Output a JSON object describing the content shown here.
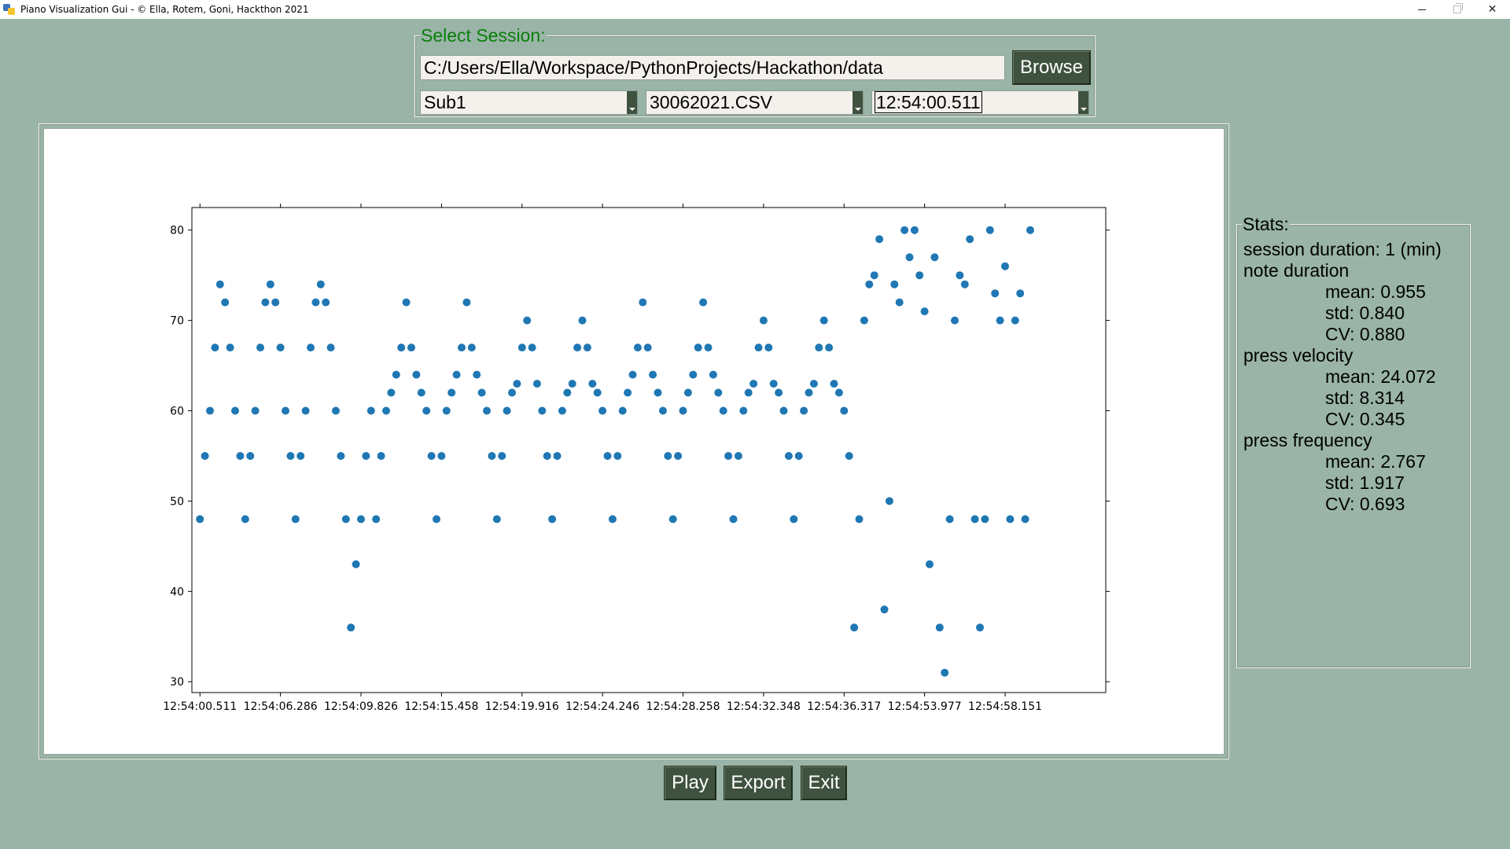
{
  "window": {
    "title": "Piano Visualization Gui - © Ella, Rotem, Goni, Hackthon 2021",
    "minimize_glyph": "–",
    "close_glyph": "✕",
    "icon": "python-icon"
  },
  "session": {
    "legend": "Select Session:",
    "path": "C:/Users/Ella/Workspace/PythonProjects/Hackathon/data",
    "browse_label": "Browse",
    "subject": "Sub1",
    "file": "30062021.CSV",
    "time": "12:54:00.511"
  },
  "stats": {
    "legend": "Stats:",
    "session_duration": "session duration: 1 (min)",
    "note_duration": {
      "label": "note duration",
      "mean": "mean: 0.955",
      "std": "std: 0.840",
      "cv": "CV: 0.880"
    },
    "press_velocity": {
      "label": "press velocity",
      "mean": "mean: 24.072",
      "std": "std: 8.314",
      "cv": "CV: 0.345"
    },
    "press_frequency": {
      "label": "press frequency",
      "mean": "mean: 2.767",
      "std": "std: 1.917",
      "cv": "CV: 0.693"
    }
  },
  "buttons": {
    "play": "Play",
    "export": "Export",
    "exit": "Exit"
  },
  "chart_data": {
    "type": "scatter",
    "title": "",
    "xlabel": "",
    "ylabel": "",
    "ylim": [
      28.8,
      82.5
    ],
    "xlim": [
      -8,
      900
    ],
    "grid": false,
    "color": "#1f77b4",
    "y_ticks": [
      30,
      40,
      50,
      60,
      70,
      80
    ],
    "x_ticks": [
      {
        "x": 0,
        "label": "12:54:00.511"
      },
      {
        "x": 80,
        "label": "12:54:06.286"
      },
      {
        "x": 160,
        "label": "12:54:09.826"
      },
      {
        "x": 240,
        "label": "12:54:15.458"
      },
      {
        "x": 320,
        "label": "12:54:19.916"
      },
      {
        "x": 400,
        "label": "12:54:24.246"
      },
      {
        "x": 480,
        "label": "12:54:28.258"
      },
      {
        "x": 560,
        "label": "12:54:32.348"
      },
      {
        "x": 640,
        "label": "12:54:36.317"
      },
      {
        "x": 720,
        "label": "12:54:53.977"
      },
      {
        "x": 800,
        "label": "12:54:58.151"
      }
    ],
    "points": [
      [
        0,
        48
      ],
      [
        5,
        55
      ],
      [
        10,
        60
      ],
      [
        15,
        67
      ],
      [
        20,
        74
      ],
      [
        25,
        72
      ],
      [
        30,
        67
      ],
      [
        35,
        60
      ],
      [
        40,
        55
      ],
      [
        45,
        48
      ],
      [
        50,
        55
      ],
      [
        55,
        60
      ],
      [
        60,
        67
      ],
      [
        65,
        72
      ],
      [
        70,
        74
      ],
      [
        75,
        72
      ],
      [
        80,
        67
      ],
      [
        85,
        60
      ],
      [
        90,
        55
      ],
      [
        95,
        48
      ],
      [
        100,
        55
      ],
      [
        105,
        60
      ],
      [
        110,
        67
      ],
      [
        115,
        72
      ],
      [
        120,
        74
      ],
      [
        125,
        72
      ],
      [
        130,
        67
      ],
      [
        135,
        60
      ],
      [
        140,
        55
      ],
      [
        145,
        48
      ],
      [
        150,
        36
      ],
      [
        155,
        43
      ],
      [
        160,
        48
      ],
      [
        165,
        55
      ],
      [
        170,
        60
      ],
      [
        175,
        48
      ],
      [
        180,
        55
      ],
      [
        185,
        60
      ],
      [
        190,
        62
      ],
      [
        195,
        64
      ],
      [
        200,
        67
      ],
      [
        205,
        72
      ],
      [
        210,
        67
      ],
      [
        215,
        64
      ],
      [
        220,
        62
      ],
      [
        225,
        60
      ],
      [
        230,
        55
      ],
      [
        235,
        48
      ],
      [
        240,
        55
      ],
      [
        245,
        60
      ],
      [
        250,
        62
      ],
      [
        255,
        64
      ],
      [
        260,
        67
      ],
      [
        265,
        72
      ],
      [
        270,
        67
      ],
      [
        275,
        64
      ],
      [
        280,
        62
      ],
      [
        285,
        60
      ],
      [
        290,
        55
      ],
      [
        295,
        48
      ],
      [
        300,
        55
      ],
      [
        305,
        60
      ],
      [
        310,
        62
      ],
      [
        315,
        63
      ],
      [
        320,
        67
      ],
      [
        325,
        70
      ],
      [
        330,
        67
      ],
      [
        335,
        63
      ],
      [
        340,
        60
      ],
      [
        345,
        55
      ],
      [
        350,
        48
      ],
      [
        355,
        55
      ],
      [
        360,
        60
      ],
      [
        365,
        62
      ],
      [
        370,
        63
      ],
      [
        375,
        67
      ],
      [
        380,
        70
      ],
      [
        385,
        67
      ],
      [
        390,
        63
      ],
      [
        395,
        62
      ],
      [
        400,
        60
      ],
      [
        405,
        55
      ],
      [
        410,
        48
      ],
      [
        415,
        55
      ],
      [
        420,
        60
      ],
      [
        425,
        62
      ],
      [
        430,
        64
      ],
      [
        435,
        67
      ],
      [
        440,
        72
      ],
      [
        445,
        67
      ],
      [
        450,
        64
      ],
      [
        455,
        62
      ],
      [
        460,
        60
      ],
      [
        465,
        55
      ],
      [
        470,
        48
      ],
      [
        475,
        55
      ],
      [
        480,
        60
      ],
      [
        485,
        62
      ],
      [
        490,
        64
      ],
      [
        495,
        67
      ],
      [
        500,
        72
      ],
      [
        505,
        67
      ],
      [
        510,
        64
      ],
      [
        515,
        62
      ],
      [
        520,
        60
      ],
      [
        525,
        55
      ],
      [
        530,
        48
      ],
      [
        535,
        55
      ],
      [
        540,
        60
      ],
      [
        545,
        62
      ],
      [
        550,
        63
      ],
      [
        555,
        67
      ],
      [
        560,
        70
      ],
      [
        565,
        67
      ],
      [
        570,
        63
      ],
      [
        575,
        62
      ],
      [
        580,
        60
      ],
      [
        585,
        55
      ],
      [
        590,
        48
      ],
      [
        595,
        55
      ],
      [
        600,
        60
      ],
      [
        605,
        62
      ],
      [
        610,
        63
      ],
      [
        615,
        67
      ],
      [
        620,
        70
      ],
      [
        625,
        67
      ],
      [
        630,
        63
      ],
      [
        635,
        62
      ],
      [
        640,
        60
      ],
      [
        645,
        55
      ],
      [
        650,
        36
      ],
      [
        655,
        48
      ],
      [
        660,
        70
      ],
      [
        665,
        74
      ],
      [
        670,
        75
      ],
      [
        675,
        79
      ],
      [
        680,
        38
      ],
      [
        685,
        50
      ],
      [
        690,
        74
      ],
      [
        695,
        72
      ],
      [
        700,
        80
      ],
      [
        705,
        77
      ],
      [
        710,
        80
      ],
      [
        715,
        75
      ],
      [
        720,
        71
      ],
      [
        725,
        43
      ],
      [
        730,
        77
      ],
      [
        735,
        36
      ],
      [
        740,
        31
      ],
      [
        745,
        48
      ],
      [
        750,
        70
      ],
      [
        755,
        75
      ],
      [
        760,
        74
      ],
      [
        765,
        79
      ],
      [
        770,
        48
      ],
      [
        775,
        36
      ],
      [
        780,
        48
      ],
      [
        785,
        80
      ],
      [
        790,
        73
      ],
      [
        795,
        70
      ],
      [
        800,
        76
      ],
      [
        805,
        48
      ],
      [
        810,
        70
      ],
      [
        815,
        73
      ],
      [
        820,
        48
      ],
      [
        825,
        80
      ]
    ]
  }
}
